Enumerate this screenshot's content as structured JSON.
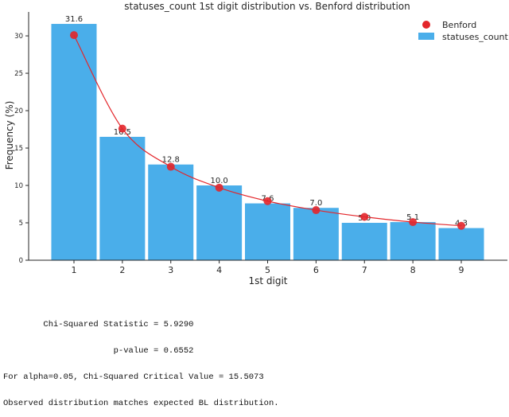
{
  "chart_data": {
    "type": "bar",
    "title": "statuses_count 1st digit distribution vs. Benford distribution",
    "xlabel": "1st digit",
    "ylabel": "Frequency (%)",
    "categories": [
      "1",
      "2",
      "3",
      "4",
      "5",
      "6",
      "7",
      "8",
      "9"
    ],
    "ylim": [
      0,
      33.2
    ],
    "yticks": [
      0,
      5,
      10,
      15,
      20,
      25,
      30
    ],
    "grid": false,
    "legend_position": "top-right",
    "series": [
      {
        "name": "statuses_count",
        "kind": "bar",
        "color": "#4aaeea",
        "values": [
          31.6,
          16.5,
          12.8,
          10.0,
          7.6,
          7.0,
          5.0,
          5.1,
          4.3
        ],
        "data_labels": [
          "31.6",
          "16.5",
          "12.8",
          "10.0",
          "7.6",
          "7.0",
          "5.0",
          "5.1",
          "4.3"
        ]
      },
      {
        "name": "Benford",
        "kind": "line-with-markers",
        "color": "#e3262b",
        "values": [
          30.1,
          17.6,
          12.5,
          9.7,
          7.9,
          6.7,
          5.8,
          5.1,
          4.6
        ]
      }
    ]
  },
  "stats": {
    "line1": "        Chi-Squared Statistic = 5.9290",
    "line2": "                      p-value = 0.6552",
    "line3": "For alpha=0.05, Chi-Squared Critical Value = 15.5073",
    "line4": "Observed distribution matches expected BL distribution."
  }
}
